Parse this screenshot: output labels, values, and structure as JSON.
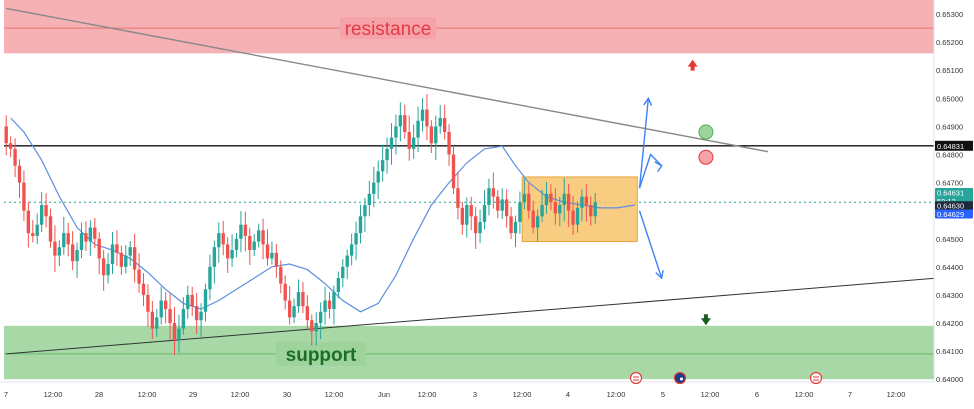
{
  "chart_data": {
    "type": "candlestick",
    "y_ticks": [
      "0.65300",
      "0.65200",
      "0.65100",
      "0.65000",
      "0.64900",
      "0.64800",
      "0.64700",
      "0.64600",
      "0.64500",
      "0.64400",
      "0.64300",
      "0.64200",
      "0.64100",
      "0.64000"
    ],
    "x_ticks": [
      "7",
      "12:00",
      "28",
      "12:00",
      "29",
      "12:00",
      "30",
      "12:00",
      "Jun",
      "12:00",
      "3",
      "12:00",
      "4",
      "12:00",
      "5",
      "12:00",
      "6",
      "12:00",
      "7",
      "12:00"
    ],
    "ylim": [
      0.6399,
      0.6535
    ],
    "zones": {
      "resistance": {
        "label": "resistance",
        "low": 0.6516,
        "high": 0.6535,
        "mid": 0.6525,
        "color": "#f5a3a8"
      },
      "support": {
        "label": "support",
        "low": 0.64,
        "high": 0.6419,
        "mid": 0.6409,
        "color": "#9ed49c"
      }
    },
    "horizontal_level": {
      "value": 0.64831,
      "label": "0.64831"
    },
    "current_price": {
      "value": 0.6463,
      "label": "0.64630"
    },
    "price_badges": [
      {
        "value": 0.64631,
        "label": "0.64631",
        "sublabel": "59:12",
        "color": "#26a69a"
      },
      {
        "value": 0.6463,
        "label": "0.64630",
        "sublabel": "",
        "color": "#1e2a3a"
      },
      {
        "value": 0.64629,
        "label": "0.64629",
        "sublabel": "",
        "color": "#2962ff"
      }
    ],
    "consolidation_box": {
      "price_low": 0.6449,
      "price_high": 0.6472,
      "x_start_bar": 117,
      "x_end_bar": 143,
      "color": "#f7c46c"
    },
    "resistance_trendline": {
      "points": [
        [
          0,
          0.6532
        ],
        [
          172,
          0.6481
        ]
      ]
    },
    "support_trendline": {
      "points": [
        [
          0,
          0.6409
        ],
        [
          218,
          0.6437
        ]
      ]
    },
    "scenario_arrows": [
      {
        "direction": "up",
        "from": [
          143,
          0.6468
        ],
        "to": [
          145,
          0.65
        ]
      },
      {
        "direction": "up-small",
        "from": [
          143,
          0.6468
        ],
        "to": [
          148,
          0.648
        ]
      },
      {
        "direction": "down",
        "from": [
          143,
          0.646
        ],
        "to": [
          148,
          0.6436
        ]
      }
    ],
    "circles": [
      {
        "color": "#9ed49c",
        "at": [
          158,
          0.6488
        ]
      },
      {
        "color": "#f5a3a8",
        "at": [
          158,
          0.6479
        ]
      }
    ],
    "signal_arrows": [
      {
        "direction": "up",
        "color": "#e53935",
        "at": [
          155,
          0.6512
        ]
      },
      {
        "direction": "down",
        "color": "#1b5e20",
        "at": [
          158,
          0.6421
        ]
      }
    ],
    "ma_line": [
      [
        1,
        0.6493
      ],
      [
        4,
        0.6488
      ],
      [
        8,
        0.6478
      ],
      [
        12,
        0.6465
      ],
      [
        16,
        0.6454
      ],
      [
        20,
        0.6448
      ],
      [
        24,
        0.6446
      ],
      [
        28,
        0.6443
      ],
      [
        32,
        0.6438
      ],
      [
        36,
        0.6432
      ],
      [
        40,
        0.6427
      ],
      [
        44,
        0.6425
      ],
      [
        48,
        0.6428
      ],
      [
        52,
        0.6432
      ],
      [
        56,
        0.6436
      ],
      [
        60,
        0.644
      ],
      [
        64,
        0.6441
      ],
      [
        68,
        0.6439
      ],
      [
        72,
        0.6434
      ],
      [
        76,
        0.6428
      ],
      [
        80,
        0.6424
      ],
      [
        84,
        0.6427
      ],
      [
        88,
        0.6437
      ],
      [
        92,
        0.645
      ],
      [
        96,
        0.6462
      ],
      [
        100,
        0.647
      ],
      [
        104,
        0.6477
      ],
      [
        108,
        0.6482
      ],
      [
        112,
        0.6483
      ],
      [
        115,
        0.6476
      ],
      [
        118,
        0.647
      ],
      [
        122,
        0.6465
      ],
      [
        126,
        0.6463
      ],
      [
        130,
        0.6462
      ],
      [
        134,
        0.6461
      ],
      [
        138,
        0.6461
      ],
      [
        142,
        0.6462
      ]
    ],
    "candle_closes": [
      0.6484,
      0.6482,
      0.6476,
      0.647,
      0.646,
      0.6452,
      0.6451,
      0.6455,
      0.6462,
      0.6458,
      0.6449,
      0.6444,
      0.6447,
      0.6452,
      0.6448,
      0.6442,
      0.6446,
      0.6452,
      0.6449,
      0.6454,
      0.645,
      0.6443,
      0.6437,
      0.6441,
      0.6448,
      0.6445,
      0.644,
      0.6444,
      0.6447,
      0.6439,
      0.6434,
      0.643,
      0.6424,
      0.6418,
      0.6422,
      0.6428,
      0.6425,
      0.642,
      0.6414,
      0.6418,
      0.6425,
      0.643,
      0.6426,
      0.6421,
      0.6424,
      0.6432,
      0.644,
      0.6447,
      0.6452,
      0.6448,
      0.6443,
      0.6446,
      0.645,
      0.6455,
      0.6451,
      0.6446,
      0.6449,
      0.6453,
      0.6448,
      0.6443,
      0.6445,
      0.644,
      0.6434,
      0.6428,
      0.6422,
      0.6426,
      0.6431,
      0.6426,
      0.6421,
      0.6417,
      0.642,
      0.6424,
      0.6428,
      0.6425,
      0.6431,
      0.6436,
      0.644,
      0.6444,
      0.6448,
      0.6452,
      0.6458,
      0.6462,
      0.6466,
      0.647,
      0.6474,
      0.6478,
      0.6482,
      0.6486,
      0.649,
      0.6494,
      0.6488,
      0.6482,
      0.6486,
      0.6492,
      0.6496,
      0.649,
      0.6484,
      0.649,
      0.6493,
      0.6488,
      0.648,
      0.6468,
      0.6461,
      0.6455,
      0.6462,
      0.6458,
      0.6452,
      0.6456,
      0.6462,
      0.6468,
      0.6465,
      0.646,
      0.6464,
      0.6458,
      0.6452,
      0.6456,
      0.6463,
      0.6466,
      0.646,
      0.6454,
      0.6458,
      0.6462,
      0.6466,
      0.6463,
      0.6459,
      0.6462,
      0.6466,
      0.646,
      0.6455,
      0.6461,
      0.6465,
      0.6462,
      0.6458,
      0.6463
    ],
    "event_icons": [
      {
        "kind": "us-flag",
        "x_label_index": 14
      },
      {
        "kind": "au-flag",
        "x_label_index": 15
      },
      {
        "kind": "us-flag",
        "x_label_index": 17
      }
    ]
  }
}
